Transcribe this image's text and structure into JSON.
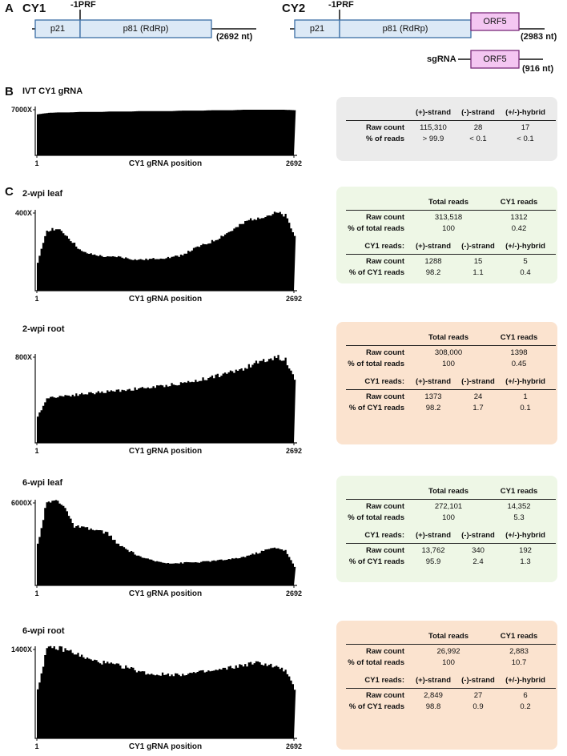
{
  "panel_a": {
    "letter": "A",
    "cy1": {
      "name": "CY1",
      "prf": "-1PRF",
      "p21": "p21",
      "p81": "p81 (RdRp)",
      "length": "(2692 nt)"
    },
    "cy2": {
      "name": "CY2",
      "prf": "-1PRF",
      "p21": "p21",
      "p81": "p81 (RdRp)",
      "orf5": "ORF5",
      "length": "(2983 nt)"
    },
    "sgrna": {
      "label": "sgRNA",
      "orf5": "ORF5",
      "length": "(916 nt)"
    }
  },
  "panel_b": {
    "letter": "B"
  },
  "panel_c": {
    "letter": "C"
  },
  "colors": {
    "gene_blue_fill": "#dce9f6",
    "gene_blue_stroke": "#3b6ea5",
    "orf5_fill": "#f4c6f2",
    "orf5_stroke": "#7a2a7a",
    "gray_box": "#ebebeb",
    "green_box": "#eef7e6",
    "peach_box": "#fbe3cf"
  },
  "samples": [
    {
      "title": "IVT CY1 gRNA",
      "ymax_label": "7000X",
      "x_start": "1",
      "x_end": "2692",
      "x_title": "CY1 gRNA position",
      "coverage_relative": [
        0.9,
        0.93,
        0.94,
        0.94,
        0.95,
        0.95,
        0.95,
        0.96,
        0.96,
        0.96,
        0.97,
        0.97,
        0.97,
        0.97,
        0.98,
        0.98,
        0.98,
        0.99,
        0.99,
        0.99,
        1.0,
        1.0,
        1.0,
        1.0,
        1.0,
        0.99
      ],
      "table": {
        "headers": [
          "(+)-strand",
          "(-)-strand",
          "(+/-)-hybrid"
        ],
        "rows": [
          {
            "label": "Raw count",
            "values": [
              "115,310",
              "28",
              "17"
            ]
          },
          {
            "label": "% of reads",
            "values": [
              "> 99.9",
              "< 0.1",
              "< 0.1"
            ]
          }
        ]
      }
    },
    {
      "title": "2-wpi leaf",
      "ymax_label": "400X",
      "x_start": "1",
      "x_end": "2692",
      "x_title": "CY1 gRNA position",
      "coverage_relative": [
        0.35,
        0.78,
        0.8,
        0.74,
        0.62,
        0.5,
        0.47,
        0.45,
        0.43,
        0.44,
        0.42,
        0.4,
        0.4,
        0.41,
        0.42,
        0.43,
        0.45,
        0.5,
        0.56,
        0.6,
        0.65,
        0.72,
        0.78,
        0.85,
        0.92,
        0.95,
        0.97,
        1.0,
        0.96,
        0.7
      ],
      "table": {
        "top_headers": [
          "Total reads",
          "CY1 reads"
        ],
        "top_rows": [
          {
            "label": "Raw count",
            "values": [
              "313,518",
              "1312"
            ]
          },
          {
            "label": "% of total reads",
            "values": [
              "100",
              "0.42"
            ]
          }
        ],
        "sub_label": "CY1 reads:",
        "headers": [
          "(+)-strand",
          "(-)-strand",
          "(+/-)-hybrid"
        ],
        "rows": [
          {
            "label": "Raw count",
            "values": [
              "1288",
              "15",
              "5"
            ]
          },
          {
            "label": "% of CY1 reads",
            "values": [
              "98.2",
              "1.1",
              "0.4"
            ]
          }
        ]
      }
    },
    {
      "title": "2-wpi root",
      "ymax_label": "800X",
      "x_start": "1",
      "x_end": "2692",
      "x_title": "CY1 gRNA position",
      "coverage_relative": [
        0.3,
        0.52,
        0.54,
        0.55,
        0.56,
        0.57,
        0.58,
        0.59,
        0.6,
        0.61,
        0.62,
        0.63,
        0.64,
        0.65,
        0.66,
        0.68,
        0.69,
        0.71,
        0.73,
        0.75,
        0.78,
        0.8,
        0.83,
        0.86,
        0.9,
        0.95,
        0.98,
        1.0,
        0.97,
        0.75
      ],
      "table": {
        "top_headers": [
          "Total reads",
          "CY1 reads"
        ],
        "top_rows": [
          {
            "label": "Raw count",
            "values": [
              "308,000",
              "1398"
            ]
          },
          {
            "label": "% of total reads",
            "values": [
              "100",
              "0.45"
            ]
          }
        ],
        "sub_label": "CY1 reads:",
        "headers": [
          "(+)-strand",
          "(-)-strand",
          "(+/-)-hybrid"
        ],
        "rows": [
          {
            "label": "Raw count",
            "values": [
              "1373",
              "24",
              "1"
            ]
          },
          {
            "label": "% of CY1 reads",
            "values": [
              "98.2",
              "1.7",
              "0.1"
            ]
          }
        ]
      }
    },
    {
      "title": "6-wpi leaf",
      "ymax_label": "6000X",
      "x_start": "1",
      "x_end": "2692",
      "x_title": "CY1 gRNA position",
      "coverage_relative": [
        0.5,
        1.0,
        1.03,
        0.98,
        0.72,
        0.7,
        0.68,
        0.66,
        0.63,
        0.5,
        0.44,
        0.38,
        0.33,
        0.3,
        0.28,
        0.27,
        0.27,
        0.28,
        0.28,
        0.29,
        0.3,
        0.31,
        0.32,
        0.34,
        0.37,
        0.4,
        0.44,
        0.46,
        0.42,
        0.22
      ],
      "table": {
        "top_headers": [
          "Total reads",
          "CY1 reads"
        ],
        "top_rows": [
          {
            "label": "Raw count",
            "values": [
              "272,101",
              "14,352"
            ]
          },
          {
            "label": "% of total reads",
            "values": [
              "100",
              "5.3"
            ]
          }
        ],
        "sub_label": "CY1 reads:",
        "headers": [
          "(+)-strand",
          "(-)-strand",
          "(+/-)-hybrid"
        ],
        "rows": [
          {
            "label": "Raw count",
            "values": [
              "13,762",
              "340",
              "192"
            ]
          },
          {
            "label": "% of CY1 reads",
            "values": [
              "95.9",
              "2.4",
              "1.3"
            ]
          }
        ]
      }
    },
    {
      "title": "6-wpi root",
      "ymax_label": "1400X",
      "x_start": "1",
      "x_end": "2692",
      "x_title": "CY1 gRNA position",
      "coverage_relative": [
        0.55,
        1.0,
        1.02,
        1.0,
        0.97,
        0.92,
        0.88,
        0.86,
        0.84,
        0.82,
        0.8,
        0.77,
        0.74,
        0.72,
        0.72,
        0.72,
        0.72,
        0.73,
        0.74,
        0.75,
        0.76,
        0.78,
        0.8,
        0.82,
        0.84,
        0.85,
        0.83,
        0.8,
        0.76,
        0.55
      ],
      "table": {
        "top_headers": [
          "Total reads",
          "CY1 reads"
        ],
        "top_rows": [
          {
            "label": "Raw count",
            "values": [
              "26,992",
              "2,883"
            ]
          },
          {
            "label": "% of total reads",
            "values": [
              "100",
              "10.7"
            ]
          }
        ],
        "sub_label": "CY1 reads:",
        "headers": [
          "(+)-strand",
          "(-)-strand",
          "(+/-)-hybrid"
        ],
        "rows": [
          {
            "label": "Raw count",
            "values": [
              "2,849",
              "27",
              "6"
            ]
          },
          {
            "label": "% of CY1 reads",
            "values": [
              "98.8",
              "0.9",
              "0.2"
            ]
          }
        ]
      }
    }
  ]
}
